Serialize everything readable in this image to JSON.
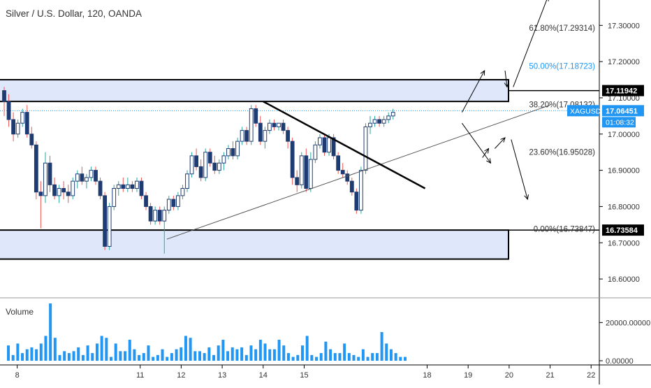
{
  "header": {
    "title": "Silver / U.S. Dollar, 120, OANDA"
  },
  "volume_label": "Volume",
  "colors": {
    "up": "#26a69a",
    "down": "#ef5350",
    "candle": "#1e3c72",
    "volume": "#2196f3",
    "zone_fill": "#dfe8fb",
    "fib_blue": "#2196f3",
    "price_tag": "#2196f3",
    "text": "#333333"
  },
  "chart_data": {
    "type": "candlestick",
    "title": "Silver / U.S. Dollar, 120, OANDA",
    "symbol": "XAGUSD",
    "y_range": [
      16.55,
      17.37
    ],
    "price_ticks": [
      "17.30000",
      "17.20000",
      "17.10000",
      "17.00000",
      "16.90000",
      "16.80000",
      "16.70000",
      "16.60000"
    ],
    "price_tick_values": [
      17.3,
      17.2,
      17.1,
      17.0,
      16.9,
      16.8,
      16.7,
      16.6
    ],
    "volume_ticks": [
      "20000.00000",
      "0.00000"
    ],
    "volume_tick_values": [
      20000,
      0
    ],
    "volume_range": [
      0,
      30000
    ],
    "x_range": [
      7.58,
      22.2
    ],
    "x_ticks": [
      "8",
      "11",
      "12",
      "13",
      "14",
      "15",
      "18",
      "19",
      "20",
      "21",
      "22"
    ],
    "x_tick_values": [
      8,
      11,
      12,
      13,
      14,
      15,
      18,
      19,
      20,
      21,
      22
    ],
    "price_tags": {
      "resistance": "17.11942",
      "current": "17.06451",
      "symbol": "XAGUSD",
      "countdown": "01:08:32",
      "support": "16.73584"
    },
    "fib_levels": [
      {
        "label": "61.80%(17.29314)",
        "value": 17.29314,
        "color": "#333333"
      },
      {
        "label": "50.00%(17.18723)",
        "value": 17.18723,
        "color": "#2196f3"
      },
      {
        "label": "38.20%(17.08132)",
        "value": 17.08132,
        "color": "#333333"
      },
      {
        "label": "23.60%(16.95028)",
        "value": 16.95028,
        "color": "#333333"
      },
      {
        "label": "0.00%(16.73847)",
        "value": 16.73847,
        "color": "#333333"
      }
    ],
    "zones": [
      {
        "top": 17.15,
        "bottom": 17.09
      },
      {
        "top": 16.735,
        "bottom": 16.655
      }
    ],
    "lines": [
      {
        "name": "rising-trendline",
        "points": [
          [
            11.65,
            16.71
          ],
          [
            21.0,
            17.08
          ]
        ],
        "width": 1,
        "color": "#555555"
      },
      {
        "name": "falling-trendline",
        "points": [
          [
            14.0,
            17.09
          ],
          [
            17.95,
            16.85
          ]
        ],
        "width": 2.5,
        "color": "#000000"
      }
    ],
    "arrows": [
      {
        "name": "projection-arrow-1",
        "from": [
          18.85,
          17.06
        ],
        "to": [
          19.4,
          17.175
        ]
      },
      {
        "name": "projection-arrow-2",
        "from": [
          19.9,
          17.175
        ],
        "to": [
          19.95,
          17.13
        ]
      },
      {
        "name": "projection-arrow-3",
        "from": [
          20.1,
          17.13
        ],
        "to": [
          20.95,
          17.38
        ]
      },
      {
        "name": "projection-arrow-4",
        "from": [
          18.85,
          17.03
        ],
        "to": [
          19.55,
          16.92
        ]
      },
      {
        "name": "projection-arrow-5",
        "from": [
          19.35,
          16.935
        ],
        "to": [
          19.5,
          16.96
        ]
      },
      {
        "name": "projection-arrow-6",
        "from": [
          19.65,
          16.96
        ],
        "to": [
          19.9,
          16.99
        ]
      },
      {
        "name": "projection-arrow-7",
        "from": [
          20.05,
          16.985
        ],
        "to": [
          20.45,
          16.82
        ]
      }
    ],
    "candles": [
      [
        17.12,
        17.13,
        17.05,
        17.09
      ],
      [
        17.09,
        17.11,
        17.02,
        17.04
      ],
      [
        17.04,
        17.06,
        16.98,
        17.0
      ],
      [
        17.0,
        17.04,
        16.99,
        17.03
      ],
      [
        17.03,
        17.07,
        17.02,
        17.06
      ],
      [
        17.06,
        17.08,
        16.99,
        17.0
      ],
      [
        17.0,
        17.02,
        16.96,
        16.97
      ],
      [
        16.97,
        16.98,
        16.82,
        16.84
      ],
      [
        16.84,
        16.87,
        16.74,
        16.83
      ],
      [
        16.83,
        16.95,
        16.81,
        16.92
      ],
      [
        16.92,
        16.94,
        16.84,
        16.86
      ],
      [
        16.86,
        16.88,
        16.82,
        16.83
      ],
      [
        16.83,
        16.86,
        16.81,
        16.85
      ],
      [
        16.85,
        16.87,
        16.82,
        16.84
      ],
      [
        16.84,
        16.86,
        16.81,
        16.83
      ],
      [
        16.83,
        16.88,
        16.82,
        16.87
      ],
      [
        16.87,
        16.9,
        16.85,
        16.89
      ],
      [
        16.89,
        16.91,
        16.86,
        16.87
      ],
      [
        16.87,
        16.89,
        16.85,
        16.88
      ],
      [
        16.88,
        16.91,
        16.87,
        16.9
      ],
      [
        16.9,
        16.91,
        16.86,
        16.87
      ],
      [
        16.87,
        16.88,
        16.82,
        16.83
      ],
      [
        16.83,
        16.84,
        16.68,
        16.69
      ],
      [
        16.69,
        16.81,
        16.68,
        16.8
      ],
      [
        16.8,
        16.86,
        16.79,
        16.85
      ],
      [
        16.85,
        16.87,
        16.83,
        16.86
      ],
      [
        16.86,
        16.88,
        16.84,
        16.85
      ],
      [
        16.85,
        16.88,
        16.84,
        16.86
      ],
      [
        16.86,
        16.87,
        16.84,
        16.85
      ],
      [
        16.85,
        16.88,
        16.84,
        16.87
      ],
      [
        16.87,
        16.88,
        16.82,
        16.83
      ],
      [
        16.83,
        16.84,
        16.79,
        16.8
      ],
      [
        16.8,
        16.81,
        16.75,
        16.76
      ],
      [
        16.76,
        16.8,
        16.75,
        16.79
      ],
      [
        16.79,
        16.8,
        16.75,
        16.76
      ],
      [
        16.76,
        16.8,
        16.67,
        16.79
      ],
      [
        16.79,
        16.83,
        16.78,
        16.82
      ],
      [
        16.82,
        16.83,
        16.79,
        16.8
      ],
      [
        16.8,
        16.84,
        16.79,
        16.83
      ],
      [
        16.83,
        16.86,
        16.82,
        16.85
      ],
      [
        16.85,
        16.9,
        16.84,
        16.89
      ],
      [
        16.89,
        16.95,
        16.88,
        16.94
      ],
      [
        16.94,
        16.96,
        16.9,
        16.91
      ],
      [
        16.91,
        16.93,
        16.87,
        16.88
      ],
      [
        16.88,
        16.96,
        16.87,
        16.95
      ],
      [
        16.95,
        16.96,
        16.91,
        16.92
      ],
      [
        16.92,
        16.94,
        16.89,
        16.9
      ],
      [
        16.9,
        16.93,
        16.89,
        16.92
      ],
      [
        16.92,
        16.95,
        16.9,
        16.94
      ],
      [
        16.94,
        16.97,
        16.93,
        16.96
      ],
      [
        16.96,
        16.98,
        16.93,
        16.94
      ],
      [
        16.94,
        16.99,
        16.93,
        16.98
      ],
      [
        16.98,
        17.02,
        16.97,
        17.01
      ],
      [
        17.01,
        17.02,
        16.97,
        16.98
      ],
      [
        16.98,
        17.08,
        16.97,
        17.07
      ],
      [
        17.07,
        17.08,
        17.02,
        17.03
      ],
      [
        17.03,
        17.05,
        16.97,
        16.98
      ],
      [
        16.98,
        17.02,
        16.96,
        17.01
      ],
      [
        17.01,
        17.04,
        17.0,
        17.03
      ],
      [
        17.03,
        17.04,
        17.01,
        17.02
      ],
      [
        17.02,
        17.03,
        17.01,
        17.03
      ],
      [
        17.03,
        17.04,
        17.0,
        17.01
      ],
      [
        17.01,
        17.02,
        16.96,
        16.98
      ],
      [
        16.98,
        16.99,
        16.86,
        16.88
      ],
      [
        16.88,
        16.9,
        16.84,
        16.86
      ],
      [
        16.86,
        16.95,
        16.85,
        16.94
      ],
      [
        16.94,
        16.96,
        16.84,
        16.85
      ],
      [
        16.85,
        16.95,
        16.84,
        16.93
      ],
      [
        16.93,
        16.98,
        16.92,
        16.97
      ],
      [
        16.97,
        17.0,
        16.96,
        16.99
      ],
      [
        16.99,
        17.0,
        16.94,
        16.95
      ],
      [
        16.95,
        17.0,
        16.94,
        16.99
      ],
      [
        16.99,
        17.0,
        16.93,
        16.94
      ],
      [
        16.94,
        16.95,
        16.89,
        16.9
      ],
      [
        16.9,
        16.92,
        16.88,
        16.89
      ],
      [
        16.89,
        16.9,
        16.86,
        16.87
      ],
      [
        16.87,
        16.88,
        16.83,
        16.84
      ],
      [
        16.84,
        16.85,
        16.78,
        16.79
      ],
      [
        16.79,
        16.91,
        16.78,
        16.9
      ],
      [
        16.9,
        17.03,
        16.89,
        17.02
      ],
      [
        17.02,
        17.05,
        17.0,
        17.03
      ],
      [
        17.03,
        17.05,
        17.02,
        17.04
      ],
      [
        17.04,
        17.05,
        17.02,
        17.03
      ],
      [
        17.03,
        17.05,
        17.02,
        17.04
      ],
      [
        17.04,
        17.06,
        17.03,
        17.05
      ],
      [
        17.05,
        17.07,
        17.04,
        17.06
      ]
    ],
    "volume": [
      8000,
      3000,
      9000,
      4000,
      6000,
      7000,
      6000,
      9000,
      13000,
      30000,
      12000,
      3000,
      5000,
      4000,
      5000,
      7000,
      3000,
      8000,
      4000,
      9000,
      13000,
      12000,
      2000,
      9000,
      5000,
      5000,
      11000,
      6000,
      3000,
      4000,
      8000,
      2000,
      3000,
      6000,
      2000,
      4000,
      6000,
      7000,
      13000,
      12000,
      5000,
      5000,
      4000,
      7000,
      3000,
      8000,
      11000,
      5000,
      7000,
      6000,
      7000,
      3000,
      8000,
      6000,
      11000,
      9000,
      6000,
      6000,
      11000,
      8000,
      4000,
      2000,
      3000,
      8000,
      13000,
      3000,
      2000,
      4000,
      10000,
      6000,
      4000,
      4000,
      9000,
      4000,
      3000,
      2000,
      6000,
      2000,
      4000,
      4000,
      15000,
      9000,
      6000,
      4000,
      2000,
      2000
    ]
  }
}
